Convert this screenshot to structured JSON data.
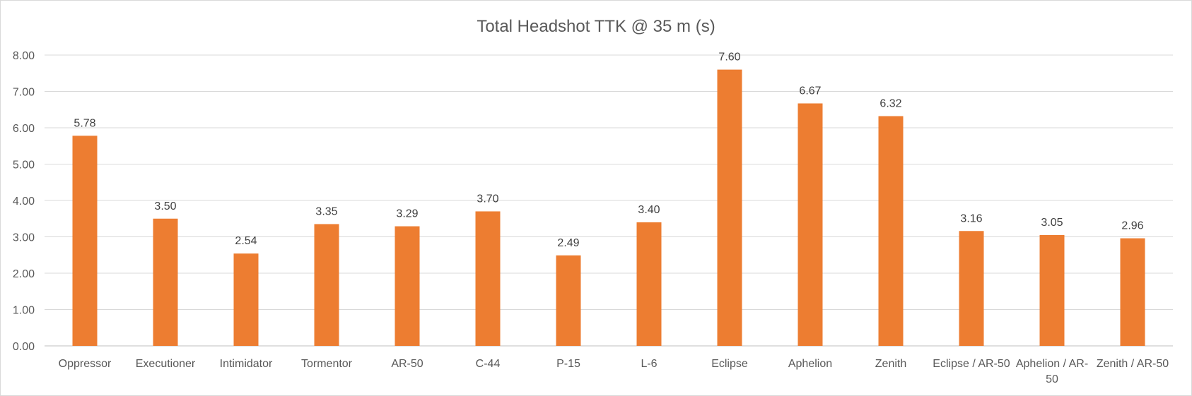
{
  "chart_data": {
    "type": "bar",
    "title": "Total Headshot TTK @ 35 m (s)",
    "xlabel": "",
    "ylabel": "",
    "ylim": [
      0,
      8
    ],
    "yticks": [
      "0.00",
      "1.00",
      "2.00",
      "3.00",
      "4.00",
      "5.00",
      "6.00",
      "7.00",
      "8.00"
    ],
    "grid": true,
    "legend": "none",
    "bar_color": "#ED7D31",
    "categories": [
      [
        "Oppressor"
      ],
      [
        "Executioner"
      ],
      [
        "Intimidator"
      ],
      [
        "Tormentor"
      ],
      [
        "AR-50"
      ],
      [
        "C-44"
      ],
      [
        "P-15"
      ],
      [
        "L-6"
      ],
      [
        "Eclipse"
      ],
      [
        "Aphelion"
      ],
      [
        "Zenith"
      ],
      [
        "Eclipse / AR-50"
      ],
      [
        "Aphelion / AR-",
        "50"
      ],
      [
        "Zenith / AR-50"
      ]
    ],
    "values": [
      5.78,
      3.5,
      2.54,
      3.35,
      3.29,
      3.7,
      2.49,
      3.4,
      7.6,
      6.67,
      6.32,
      3.16,
      3.05,
      2.96
    ],
    "data_labels": [
      "5.78",
      "3.50",
      "2.54",
      "3.35",
      "3.29",
      "3.70",
      "2.49",
      "3.40",
      "7.60",
      "6.67",
      "6.32",
      "3.16",
      "3.05",
      "2.96"
    ]
  }
}
